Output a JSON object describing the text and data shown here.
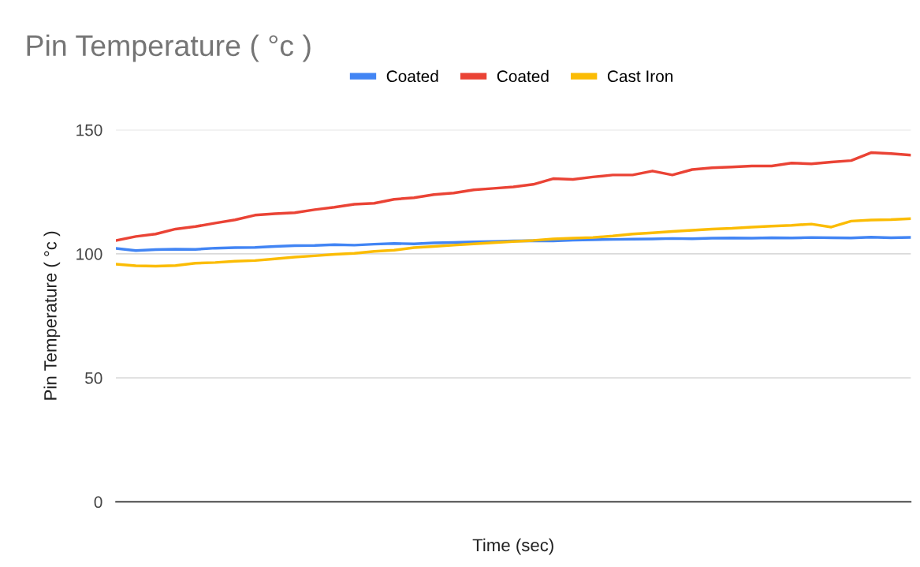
{
  "chart_data": {
    "type": "line",
    "title": "Pin Temperature ( °c )",
    "xlabel": "Time (sec)",
    "ylabel": "Pin Temperature ( °c )",
    "categories": [
      null,
      null,
      null,
      null,
      null,
      null,
      null,
      null,
      null,
      null,
      null,
      null,
      null,
      null,
      null,
      null,
      null,
      null,
      null,
      null,
      null,
      null,
      null,
      null,
      null,
      null,
      null,
      null,
      null,
      null,
      null,
      null,
      null,
      null,
      null,
      null,
      null,
      null,
      null,
      null,
      null
    ],
    "series": [
      {
        "name": "Coated",
        "color": "#4285f4",
        "values": [
          102.2,
          101.3,
          101.7,
          101.9,
          101.8,
          102.3,
          102.5,
          102.6,
          103,
          103.3,
          103.4,
          103.7,
          103.5,
          103.9,
          104.2,
          104,
          104.4,
          104.6,
          104.8,
          105,
          105.2,
          105.3,
          105.2,
          105.5,
          105.7,
          105.8,
          105.9,
          106,
          106.2,
          106.1,
          106.3,
          106.4,
          106.3,
          106.5,
          106.4,
          106.6,
          106.5,
          106.4,
          106.7,
          106.5,
          106.6
        ]
      },
      {
        "name": "Coated",
        "color": "#ea4335",
        "values": [
          105.4,
          107,
          108,
          110,
          111,
          112.4,
          113.7,
          115.6,
          116.2,
          116.6,
          117.8,
          118.8,
          120,
          120.4,
          122,
          122.6,
          123.9,
          124.5,
          125.8,
          126.4,
          127,
          128,
          130.3,
          130,
          131,
          131.8,
          131.8,
          133.4,
          131.8,
          134,
          134.7,
          135,
          135.4,
          135.4,
          136.6,
          136.3,
          137,
          137.6,
          140.8,
          140.4,
          139.8
        ]
      },
      {
        "name": "Cast Iron",
        "color": "#fbbc04",
        "values": [
          95.8,
          95.2,
          95,
          95.3,
          96.2,
          96.5,
          97,
          97.3,
          98,
          98.7,
          99.2,
          99.8,
          100.2,
          101,
          101.5,
          102.5,
          103,
          103.5,
          104,
          104.5,
          105,
          105.4,
          106,
          106.3,
          106.6,
          107.2,
          108,
          108.5,
          109,
          109.5,
          110,
          110.3,
          110.8,
          111.2,
          111.5,
          112,
          110.8,
          113.2,
          113.6,
          113.8,
          114.2
        ]
      }
    ],
    "ylim": [
      0,
      150
    ],
    "yticks": [
      0,
      50,
      100,
      150
    ],
    "grid": "y",
    "legend": "top",
    "marker": "none",
    "line_style": "solid"
  }
}
